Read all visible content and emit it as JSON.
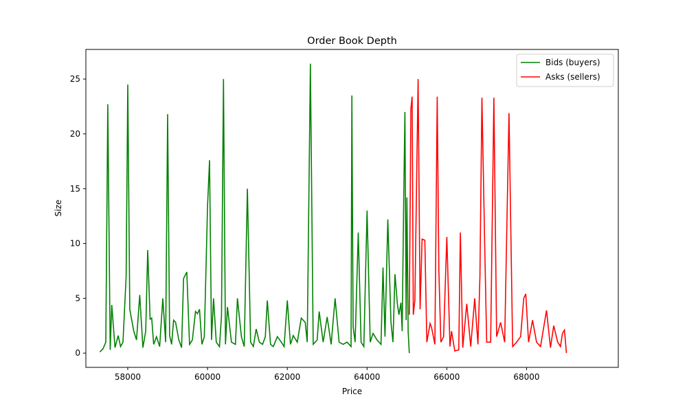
{
  "chart_data": {
    "type": "line",
    "title": "Order Book Depth",
    "xlabel": "Price",
    "ylabel": "Size",
    "xlim": [
      56950,
      70300
    ],
    "ylim": [
      -1.3,
      27.7
    ],
    "xticks": [
      58000,
      60000,
      62000,
      64000,
      66000,
      68000
    ],
    "xtick_labels": [
      "58000",
      "60000",
      "62000",
      "64000",
      "66000",
      "68000"
    ],
    "yticks": [
      0,
      5,
      10,
      15,
      20,
      25
    ],
    "ytick_labels": [
      "0",
      "5",
      "10",
      "15",
      "20",
      "25"
    ],
    "grid": false,
    "legend_position": "top-right",
    "series": [
      {
        "name": "Bids (buyers)",
        "color": "#008000",
        "points": [
          [
            57300,
            0.1
          ],
          [
            57380,
            0.4
          ],
          [
            57450,
            1.0
          ],
          [
            57500,
            22.7
          ],
          [
            57560,
            0.3
          ],
          [
            57600,
            4.4
          ],
          [
            57680,
            0.5
          ],
          [
            57760,
            1.6
          ],
          [
            57820,
            0.6
          ],
          [
            57880,
            1.0
          ],
          [
            57960,
            7.0
          ],
          [
            58000,
            24.5
          ],
          [
            58050,
            4.0
          ],
          [
            58100,
            3.0
          ],
          [
            58150,
            2.0
          ],
          [
            58220,
            1.2
          ],
          [
            58260,
            3.2
          ],
          [
            58300,
            5.3
          ],
          [
            58380,
            0.5
          ],
          [
            58450,
            2.0
          ],
          [
            58500,
            9.4
          ],
          [
            58560,
            3.1
          ],
          [
            58600,
            3.2
          ],
          [
            58650,
            0.8
          ],
          [
            58720,
            1.5
          ],
          [
            58800,
            0.6
          ],
          [
            58880,
            5.0
          ],
          [
            58950,
            1.0
          ],
          [
            59000,
            21.8
          ],
          [
            59050,
            1.6
          ],
          [
            59100,
            0.8
          ],
          [
            59150,
            3.0
          ],
          [
            59200,
            2.8
          ],
          [
            59280,
            1.2
          ],
          [
            59350,
            0.5
          ],
          [
            59400,
            6.8
          ],
          [
            59480,
            7.4
          ],
          [
            59550,
            0.8
          ],
          [
            59620,
            1.2
          ],
          [
            59700,
            3.8
          ],
          [
            59750,
            3.6
          ],
          [
            59800,
            4.0
          ],
          [
            59860,
            0.8
          ],
          [
            59920,
            1.5
          ],
          [
            60000,
            13.4
          ],
          [
            60050,
            17.6
          ],
          [
            60100,
            1.2
          ],
          [
            60150,
            5.0
          ],
          [
            60220,
            1.0
          ],
          [
            60300,
            0.6
          ],
          [
            60350,
            3.4
          ],
          [
            60400,
            25.0
          ],
          [
            60450,
            0.8
          ],
          [
            60500,
            4.2
          ],
          [
            60600,
            1.0
          ],
          [
            60700,
            0.8
          ],
          [
            60750,
            5.0
          ],
          [
            60850,
            1.5
          ],
          [
            60920,
            0.6
          ],
          [
            61000,
            15.0
          ],
          [
            61080,
            1.0
          ],
          [
            61150,
            0.6
          ],
          [
            61220,
            2.2
          ],
          [
            61300,
            1.0
          ],
          [
            61380,
            0.8
          ],
          [
            61450,
            1.5
          ],
          [
            61500,
            4.8
          ],
          [
            61580,
            0.8
          ],
          [
            61650,
            0.6
          ],
          [
            61750,
            1.5
          ],
          [
            61850,
            1.0
          ],
          [
            61920,
            0.6
          ],
          [
            62000,
            4.8
          ],
          [
            62080,
            0.8
          ],
          [
            62150,
            1.6
          ],
          [
            62250,
            1.0
          ],
          [
            62350,
            3.2
          ],
          [
            62450,
            2.8
          ],
          [
            62500,
            1.0
          ],
          [
            62580,
            26.4
          ],
          [
            62650,
            0.8
          ],
          [
            62750,
            1.2
          ],
          [
            62800,
            3.8
          ],
          [
            62900,
            1.0
          ],
          [
            63000,
            3.3
          ],
          [
            63100,
            0.8
          ],
          [
            63200,
            5.0
          ],
          [
            63300,
            1.0
          ],
          [
            63400,
            0.8
          ],
          [
            63500,
            1.0
          ],
          [
            63600,
            0.6
          ],
          [
            63620,
            23.5
          ],
          [
            63650,
            2.4
          ],
          [
            63700,
            1.0
          ],
          [
            63780,
            11.0
          ],
          [
            63850,
            1.0
          ],
          [
            63920,
            0.6
          ],
          [
            64000,
            13.0
          ],
          [
            64080,
            1.0
          ],
          [
            64150,
            1.8
          ],
          [
            64250,
            1.2
          ],
          [
            64350,
            0.8
          ],
          [
            64400,
            7.8
          ],
          [
            64450,
            1.5
          ],
          [
            64520,
            12.2
          ],
          [
            64600,
            2.8
          ],
          [
            64650,
            1.0
          ],
          [
            64700,
            7.2
          ],
          [
            64760,
            4.5
          ],
          [
            64800,
            3.5
          ],
          [
            64850,
            4.6
          ],
          [
            64880,
            2.0
          ],
          [
            64920,
            14.2
          ],
          [
            64950,
            22.0
          ],
          [
            64980,
            3.0
          ],
          [
            65000,
            14.2
          ],
          [
            65030,
            2.0
          ],
          [
            65060,
            0.0
          ]
        ]
      },
      {
        "name": "Asks (sellers)",
        "color": "#ff0000",
        "points": [
          [
            65060,
            3.5
          ],
          [
            65100,
            22.3
          ],
          [
            65130,
            23.4
          ],
          [
            65160,
            3.5
          ],
          [
            65200,
            4.8
          ],
          [
            65280,
            25.0
          ],
          [
            65330,
            4.0
          ],
          [
            65380,
            10.4
          ],
          [
            65450,
            10.3
          ],
          [
            65500,
            1.0
          ],
          [
            65580,
            2.7
          ],
          [
            65620,
            2.3
          ],
          [
            65700,
            0.8
          ],
          [
            65760,
            23.4
          ],
          [
            65800,
            7.6
          ],
          [
            65850,
            1.0
          ],
          [
            65920,
            1.5
          ],
          [
            66000,
            10.6
          ],
          [
            66080,
            0.6
          ],
          [
            66120,
            2.0
          ],
          [
            66200,
            0.2
          ],
          [
            66300,
            0.3
          ],
          [
            66340,
            11.0
          ],
          [
            66400,
            0.5
          ],
          [
            66500,
            4.5
          ],
          [
            66600,
            0.6
          ],
          [
            66700,
            5.0
          ],
          [
            66780,
            0.8
          ],
          [
            66830,
            7.0
          ],
          [
            66880,
            23.3
          ],
          [
            66950,
            10.0
          ],
          [
            67000,
            1.0
          ],
          [
            67100,
            1.0
          ],
          [
            67180,
            23.3
          ],
          [
            67250,
            1.5
          ],
          [
            67350,
            2.8
          ],
          [
            67450,
            1.0
          ],
          [
            67560,
            21.9
          ],
          [
            67650,
            0.6
          ],
          [
            67750,
            1.0
          ],
          [
            67850,
            1.5
          ],
          [
            67930,
            5.0
          ],
          [
            67980,
            5.4
          ],
          [
            68050,
            1.0
          ],
          [
            68150,
            3.0
          ],
          [
            68250,
            1.0
          ],
          [
            68350,
            0.6
          ],
          [
            68500,
            3.9
          ],
          [
            68600,
            0.5
          ],
          [
            68680,
            2.5
          ],
          [
            68780,
            1.0
          ],
          [
            68850,
            0.6
          ],
          [
            68900,
            1.8
          ],
          [
            68950,
            2.1
          ],
          [
            69000,
            0.0
          ]
        ]
      }
    ]
  }
}
